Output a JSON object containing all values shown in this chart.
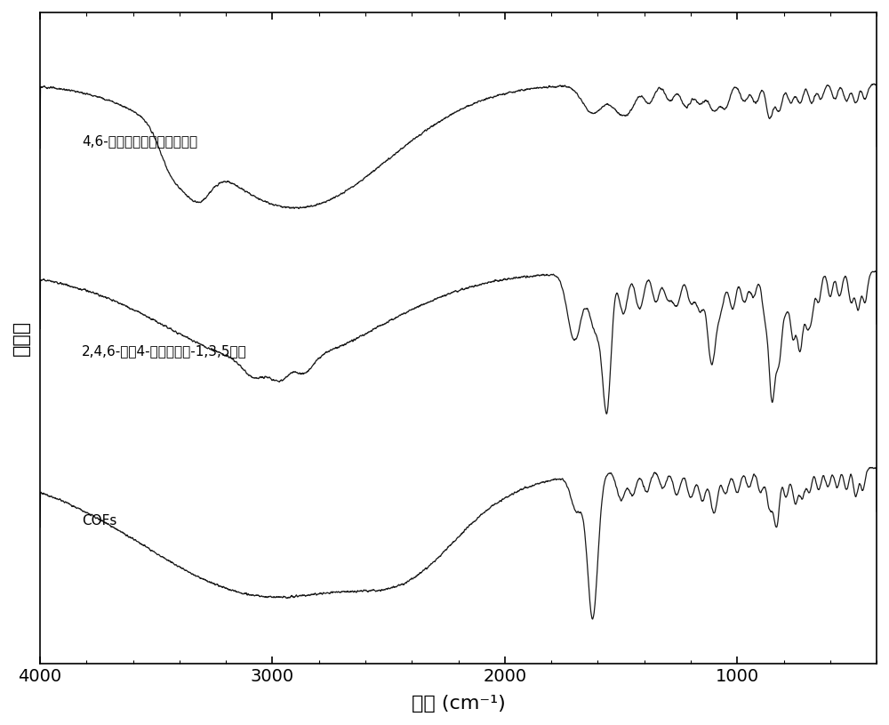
{
  "title": "",
  "xlabel": "波数 (cm⁻¹)",
  "ylabel": "透光率",
  "xlim_left": 4000,
  "xlim_right": 400,
  "x_ticks": [
    4000,
    3000,
    2000,
    1000
  ],
  "background_color": "#ffffff",
  "line_color": "#1a1a1a",
  "label1": "4,6-二氨基间苯二酚二盐酸盐",
  "label2": "2,4,6-三（4-醒基苯基）-1,3,5三嚃",
  "label3": "COFs",
  "figwidth": 10.0,
  "figheight": 8.15,
  "dpi": 100
}
